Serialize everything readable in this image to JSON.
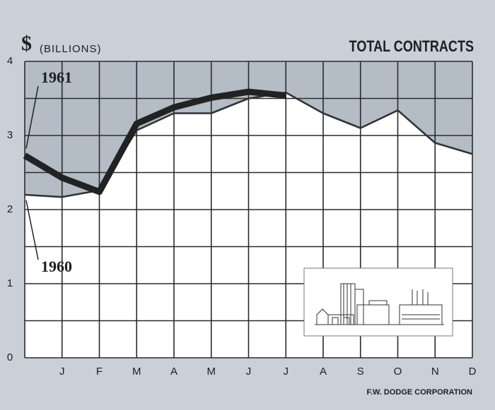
{
  "chart_data": {
    "type": "line",
    "title": "TOTAL CONTRACTS",
    "y_symbol": "$",
    "y_unit": "(BILLIONS)",
    "source": "F.W. DODGE CORPORATION",
    "categories": [
      null,
      "J",
      "F",
      "M",
      "A",
      "M",
      "J",
      "J",
      "A",
      "S",
      "O",
      "N",
      "D"
    ],
    "series": [
      {
        "name": "1961",
        "color": "#222222",
        "values": [
          2.73,
          2.43,
          2.24,
          3.16,
          3.38,
          3.51,
          3.59,
          3.54,
          null,
          null,
          null,
          null,
          null
        ]
      },
      {
        "name": "1960",
        "color": "#333333",
        "values": [
          2.2,
          2.17,
          2.26,
          3.07,
          3.3,
          3.3,
          3.5,
          3.58,
          3.3,
          3.1,
          3.34,
          2.9,
          2.75
        ]
      }
    ],
    "ylim": [
      0,
      4
    ],
    "yticks": [
      0,
      1,
      2,
      3,
      4
    ],
    "minor_yticks": [
      0.5,
      1.5,
      2.5,
      3.5
    ],
    "grid": true
  }
}
